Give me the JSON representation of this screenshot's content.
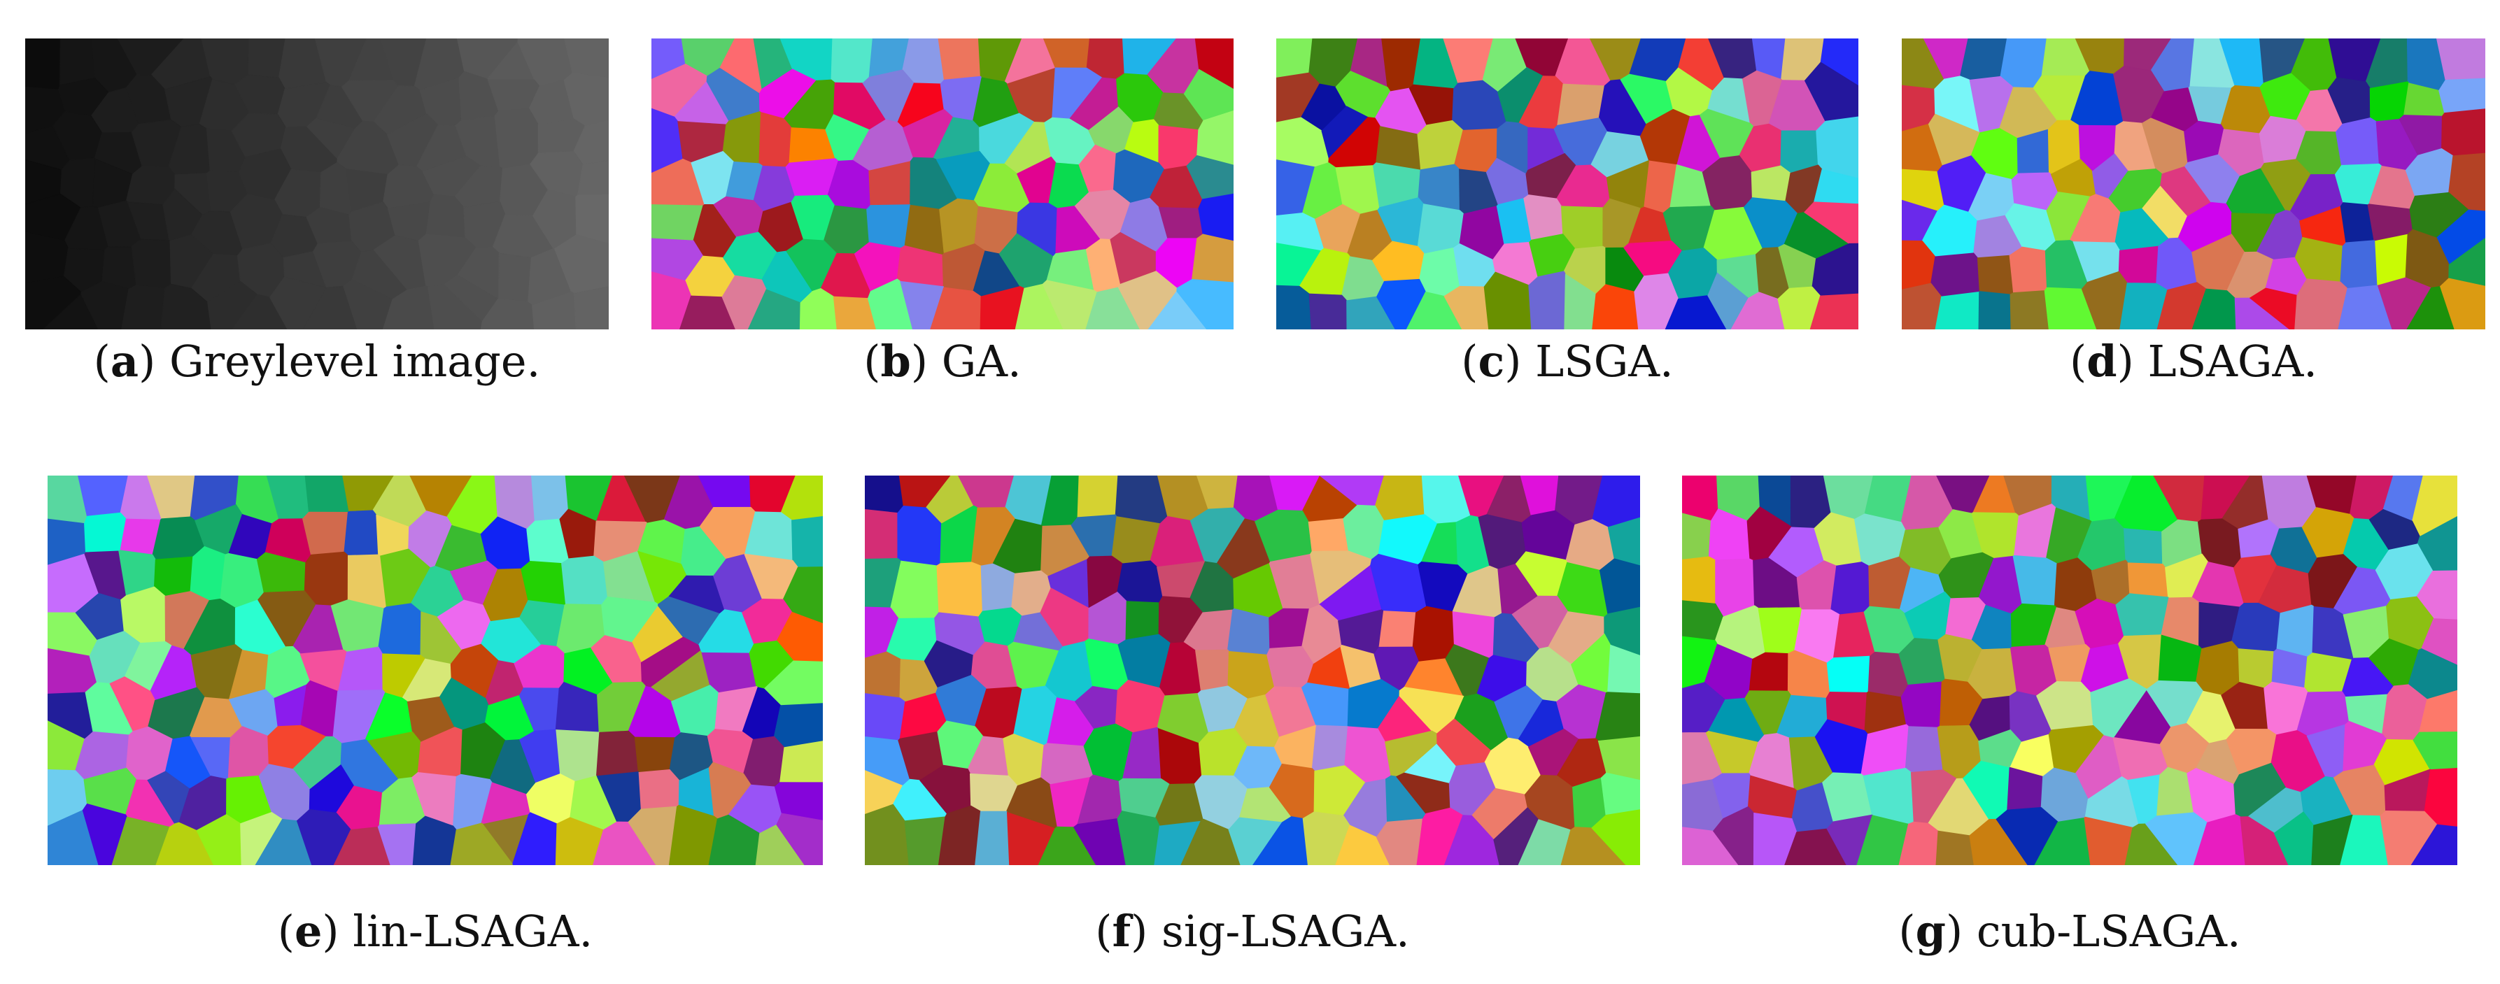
{
  "figure": {
    "panels": [
      {
        "id": "a",
        "letter": "a",
        "title": "Greylevel image.",
        "mode": "grey",
        "seed": 7
      },
      {
        "id": "b",
        "letter": "b",
        "title": "GA.",
        "mode": "color",
        "seed": 11
      },
      {
        "id": "c",
        "letter": "c",
        "title": "LSGA.",
        "mode": "color",
        "seed": 23
      },
      {
        "id": "d",
        "letter": "d",
        "title": "LSAGA.",
        "mode": "color",
        "seed": 37
      },
      {
        "id": "e",
        "letter": "e",
        "title": "lin-LSAGA.",
        "mode": "color",
        "seed": 51
      },
      {
        "id": "f",
        "letter": "f",
        "title": "sig-LSAGA.",
        "mode": "color",
        "seed": 67
      },
      {
        "id": "g",
        "letter": "g",
        "title": "cub-LSAGA.",
        "mode": "color",
        "seed": 83
      }
    ]
  }
}
